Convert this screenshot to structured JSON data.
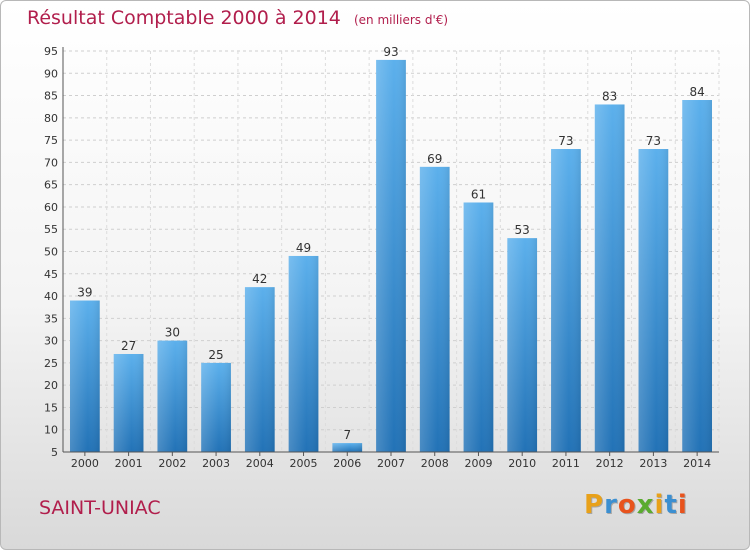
{
  "chart_data": {
    "type": "bar",
    "title": "Résultat Comptable 2000 à 2014",
    "subtitle": "(en milliers d'€)",
    "categories": [
      "2000",
      "2001",
      "2002",
      "2003",
      "2004",
      "2005",
      "2006",
      "2007",
      "2008",
      "2009",
      "2010",
      "2011",
      "2012",
      "2013",
      "2014"
    ],
    "values": [
      39,
      27,
      30,
      25,
      42,
      49,
      7,
      93,
      69,
      61,
      53,
      73,
      83,
      73,
      84
    ],
    "ylim": [
      5,
      95
    ],
    "yticks": [
      5,
      10,
      15,
      20,
      25,
      30,
      35,
      40,
      45,
      50,
      55,
      60,
      65,
      70,
      75,
      80,
      85,
      90,
      95
    ],
    "grid": true,
    "bar_color": "#3d8fd6"
  },
  "footer": {
    "city": "SAINT-UNIAC",
    "logo_letters": [
      "P",
      "r",
      "o",
      "x",
      "i",
      "t",
      "i"
    ],
    "logo_colors": [
      "#e8a11a",
      "#3b8fd1",
      "#e8531d",
      "#5aab2f",
      "#e8a11a",
      "#3b8fd1",
      "#e8531d"
    ]
  }
}
